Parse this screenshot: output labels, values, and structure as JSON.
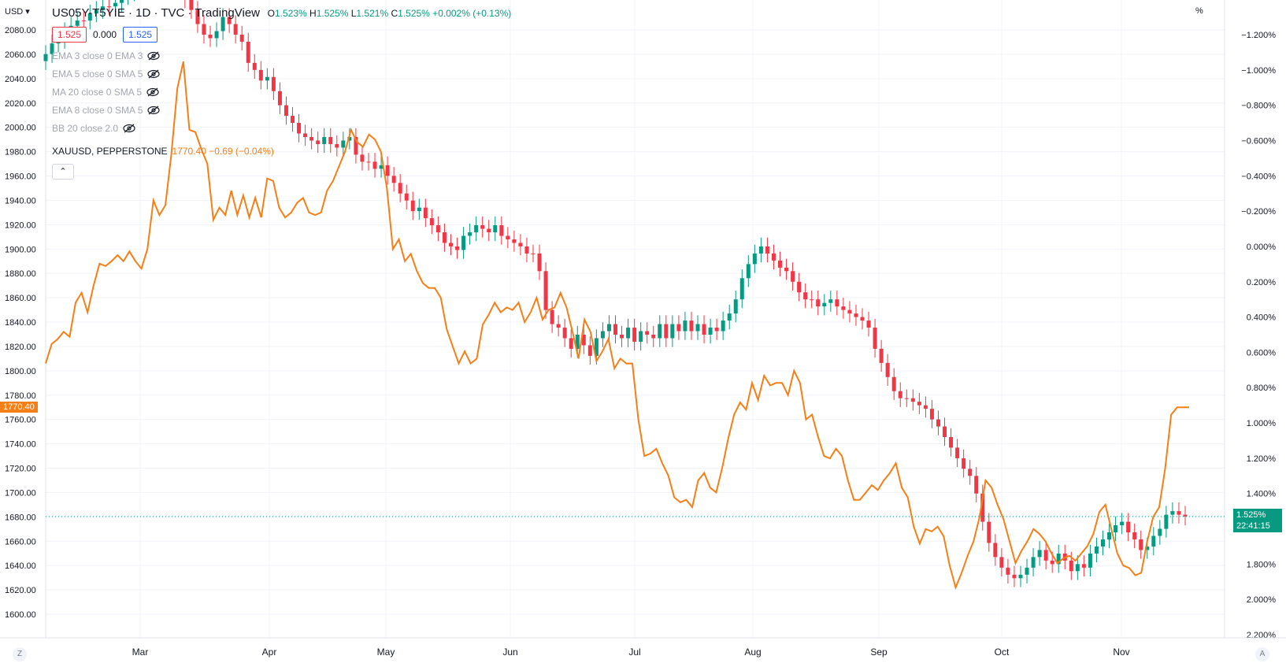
{
  "header": {
    "title": "US05Y-T5YIE · 1D · TVC · TradingView",
    "ohlc": {
      "o": "1.523%",
      "h": "1.525%",
      "l": "1.521%",
      "c": "1.525%",
      "chg": "+0.002% (+0.13%)"
    },
    "bid": "1.525",
    "spread": "0.000",
    "ask": "1.525"
  },
  "indicators": [
    "EMA 3 close 0 EMA 3",
    "EMA 5 close 0 SMA 5",
    "MA 20 close 0 SMA 5",
    "EMA 8 close 0 SMA 5",
    "BB 20 close 2.0"
  ],
  "overlay": {
    "name": "XAUUSD, PEPPERSTONE",
    "value": "1770.40 −0.69 (−0.04%)",
    "tag": "1770.40"
  },
  "corner_left": "USD",
  "corner_right": "%",
  "price_tag": {
    "value": "1.525%",
    "time": "22:41:15"
  },
  "bottom_left_btn": "Z",
  "bottom_right_btn": "A",
  "colors": {
    "up": "#089981",
    "down": "#f23645",
    "gold": "#f57f17",
    "grid": "#f0f3fa"
  },
  "chart_data": {
    "type": "line",
    "left_axis": {
      "ticks": [
        2080,
        2060,
        2040,
        2020,
        2000,
        1980,
        1960,
        1940,
        1920,
        1900,
        1880,
        1860,
        1840,
        1820,
        1800,
        1780,
        1760,
        1740,
        1720,
        1700,
        1680,
        1660,
        1640,
        1620,
        1600
      ]
    },
    "right_axis": {
      "ticks": [
        "−1.200%",
        "−1.000%",
        "−0.800%",
        "−0.600%",
        "−0.400%",
        "−0.200%",
        "0.000%",
        "0.200%",
        "0.400%",
        "0.600%",
        "0.800%",
        "1.000%",
        "1.200%",
        "1.400%",
        "1.600%",
        "1.800%",
        "2.000%",
        "2.200%"
      ]
    },
    "x_ticks": [
      "Mar",
      "Apr",
      "May",
      "Jun",
      "Jul",
      "Aug",
      "Sep",
      "Oct",
      "Nov"
    ],
    "series": [
      {
        "name": "XAUUSD, PEPPERSTONE",
        "axis": "left",
        "values": [
          1806,
          1822,
          1826,
          1832,
          1828,
          1856,
          1864,
          1848,
          1870,
          1888,
          1886,
          1890,
          1895,
          1890,
          1898,
          1890,
          1884,
          1900,
          1940,
          1928,
          1936,
          1978,
          2032,
          2054,
          1998,
          1996,
          1982,
          1970,
          1924,
          1934,
          1928,
          1948,
          1928,
          1944,
          1926,
          1942,
          1926,
          1958,
          1956,
          1934,
          1926,
          1930,
          1938,
          1942,
          1930,
          1928,
          1930,
          1948,
          1956,
          1968,
          1980,
          1998,
          1988,
          1984,
          1994,
          1990,
          1980,
          1950,
          1900,
          1908,
          1890,
          1896,
          1882,
          1872,
          1868,
          1868,
          1860,
          1834,
          1820,
          1806,
          1816,
          1806,
          1810,
          1838,
          1846,
          1856,
          1848,
          1852,
          1850,
          1856,
          1840,
          1848,
          1860,
          1842,
          1850,
          1852,
          1864,
          1852,
          1832,
          1810,
          1842,
          1832,
          1808,
          1816,
          1826,
          1802,
          1810,
          1806,
          1806,
          1760,
          1730,
          1732,
          1736,
          1724,
          1714,
          1696,
          1692,
          1694,
          1688,
          1710,
          1716,
          1704,
          1700,
          1720,
          1744,
          1764,
          1774,
          1768,
          1790,
          1776,
          1796,
          1788,
          1790,
          1790,
          1780,
          1800,
          1790,
          1760,
          1764,
          1746,
          1730,
          1728,
          1736,
          1730,
          1710,
          1694,
          1694,
          1700,
          1706,
          1702,
          1710,
          1716,
          1724,
          1704,
          1696,
          1672,
          1658,
          1670,
          1668,
          1672,
          1664,
          1640,
          1622,
          1634,
          1648,
          1660,
          1680,
          1710,
          1704,
          1690,
          1678,
          1660,
          1642,
          1652,
          1660,
          1670,
          1666,
          1660,
          1650,
          1642,
          1646,
          1648,
          1644,
          1650,
          1656,
          1666,
          1684,
          1690,
          1670,
          1650,
          1640,
          1638,
          1632,
          1634,
          1660,
          1680,
          1688,
          1720,
          1764,
          1770,
          1770,
          1770
        ]
      },
      {
        "name": "US05Y-T5YIE",
        "axis": "right",
        "type": "candlestick",
        "values_close": [
          -1.09,
          -1.15,
          -1.17,
          -1.22,
          -1.25,
          -1.28,
          -1.28,
          -1.32,
          -1.34,
          -1.36,
          -1.36,
          -1.38,
          -1.42,
          -1.44,
          -1.46,
          -1.5,
          -1.52,
          -1.54,
          -1.54,
          -1.52,
          -1.5,
          -1.46,
          -1.4,
          -1.34,
          -1.26,
          -1.2,
          -1.18,
          -1.22,
          -1.3,
          -1.26,
          -1.2,
          -1.16,
          -1.04,
          -1.0,
          -0.94,
          -0.96,
          -0.88,
          -0.8,
          -0.74,
          -0.7,
          -0.64,
          -0.62,
          -0.6,
          -0.58,
          -0.62,
          -0.58,
          -0.56,
          -0.6,
          -0.62,
          -0.52,
          -0.48,
          -0.48,
          -0.44,
          -0.46,
          -0.4,
          -0.36,
          -0.3,
          -0.26,
          -0.2,
          -0.22,
          -0.16,
          -0.12,
          -0.08,
          -0.02,
          0.0,
          0.02,
          -0.06,
          -0.08,
          -0.12,
          -0.1,
          -0.08,
          -0.12,
          -0.06,
          -0.04,
          -0.02,
          0.0,
          0.04,
          0.04,
          0.14,
          0.36,
          0.44,
          0.46,
          0.52,
          0.58,
          0.5,
          0.56,
          0.62,
          0.52,
          0.48,
          0.44,
          0.5,
          0.52,
          0.46,
          0.54,
          0.48,
          0.5,
          0.52,
          0.44,
          0.52,
          0.44,
          0.48,
          0.42,
          0.48,
          0.44,
          0.5,
          0.46,
          0.48,
          0.42,
          0.38,
          0.3,
          0.18,
          0.1,
          0.04,
          0.0,
          0.04,
          0.08,
          0.12,
          0.14,
          0.2,
          0.26,
          0.3,
          0.3,
          0.34,
          0.32,
          0.3,
          0.34,
          0.36,
          0.38,
          0.4,
          0.42,
          0.46,
          0.58,
          0.66,
          0.74,
          0.82,
          0.86,
          0.86,
          0.88,
          0.9,
          0.92,
          0.98,
          1.02,
          1.08,
          1.14,
          1.2,
          1.26,
          1.3,
          1.4,
          1.56,
          1.68,
          1.76,
          1.82,
          1.86,
          1.88,
          1.86,
          1.82,
          1.76,
          1.72,
          1.78,
          1.8,
          1.74,
          1.78,
          1.84,
          1.8,
          1.82,
          1.74,
          1.7,
          1.66,
          1.62,
          1.58,
          1.56,
          1.62,
          1.66,
          1.72,
          1.7,
          1.64,
          1.6,
          1.52,
          1.5,
          1.52,
          1.53
        ]
      }
    ]
  }
}
